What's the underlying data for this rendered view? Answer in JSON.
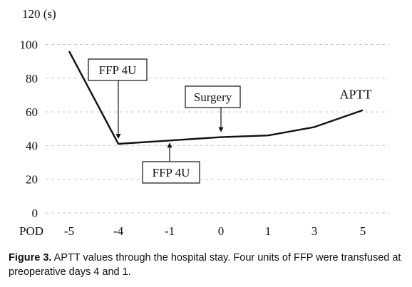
{
  "chart_data": {
    "type": "line",
    "categories": [
      "-5",
      "-4",
      "-1",
      "0",
      "1",
      "3",
      "5"
    ],
    "series": [
      {
        "name": "APTT",
        "values": [
          96,
          41,
          43,
          45,
          46,
          51,
          61
        ]
      }
    ],
    "y_unit_label": "120 (s)",
    "y_ticks": [
      "0",
      "20",
      "40",
      "60",
      "80",
      "100"
    ],
    "x_axis_label": "POD",
    "ylim": [
      0,
      120
    ],
    "grid": "horizontal dashed",
    "annotations": [
      {
        "text": "FFP 4U",
        "target_category": "-4",
        "position": "above"
      },
      {
        "text": "FFP 4U",
        "target_category": "-1",
        "position": "below"
      },
      {
        "text": "Surgery",
        "target_category": "0",
        "position": "above"
      }
    ]
  },
  "caption": {
    "label": "Figure 3.",
    "text": " APTT values through the hospital stay. Four units of FFP were transfused at preoperative days 4 and 1."
  }
}
